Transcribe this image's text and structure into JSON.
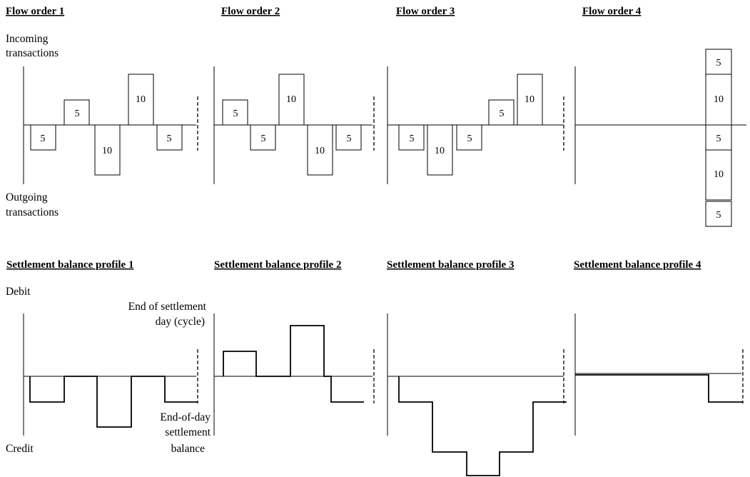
{
  "flow_panels": [
    {
      "title": "Flow order 1",
      "transactions": [
        {
          "direction": "out",
          "value": 5
        },
        {
          "direction": "in",
          "value": 5
        },
        {
          "direction": "out",
          "value": 10
        },
        {
          "direction": "in",
          "value": 10
        },
        {
          "direction": "out",
          "value": 5
        }
      ]
    },
    {
      "title": "Flow order 2",
      "transactions": [
        {
          "direction": "in",
          "value": 5
        },
        {
          "direction": "out",
          "value": 5
        },
        {
          "direction": "in",
          "value": 10
        },
        {
          "direction": "out",
          "value": 10
        },
        {
          "direction": "out",
          "value": 5
        }
      ]
    },
    {
      "title": "Flow order 3",
      "transactions": [
        {
          "direction": "out",
          "value": 5
        },
        {
          "direction": "out",
          "value": 10
        },
        {
          "direction": "out",
          "value": 5
        },
        {
          "direction": "in",
          "value": 5
        },
        {
          "direction": "in",
          "value": 10
        }
      ]
    },
    {
      "title": "Flow order 4",
      "transactions": [
        {
          "direction": "in",
          "value": 5
        },
        {
          "direction": "in",
          "value": 10
        },
        {
          "direction": "out",
          "value": 5
        },
        {
          "direction": "out",
          "value": 10
        },
        {
          "direction": "out",
          "value": 5
        }
      ]
    }
  ],
  "profile_panels": [
    {
      "title": "Settlement balance profile 1",
      "balances": [
        0,
        -5,
        0,
        -10,
        0,
        -5
      ]
    },
    {
      "title": "Settlement balance profile 2",
      "balances": [
        5,
        0,
        10,
        0,
        -5
      ]
    },
    {
      "title": "Settlement balance profile 3",
      "balances": [
        0,
        -5,
        -15,
        -20,
        -15,
        -5
      ]
    },
    {
      "title": "Settlement balance profile 4",
      "balances": [
        0,
        -5
      ]
    }
  ],
  "labels": {
    "incoming_line1": "Incoming",
    "incoming_line2": "transactions",
    "outgoing_line1": "Outgoing",
    "outgoing_line2": "transactions",
    "debit": "Debit",
    "credit": "Credit",
    "end_of_day_line1": "End of settlement",
    "end_of_day_line2": "day (cycle)",
    "eod_balance_line1": "End-of-day",
    "eod_balance_line2": "settlement",
    "eod_balance_line3": "balance"
  }
}
